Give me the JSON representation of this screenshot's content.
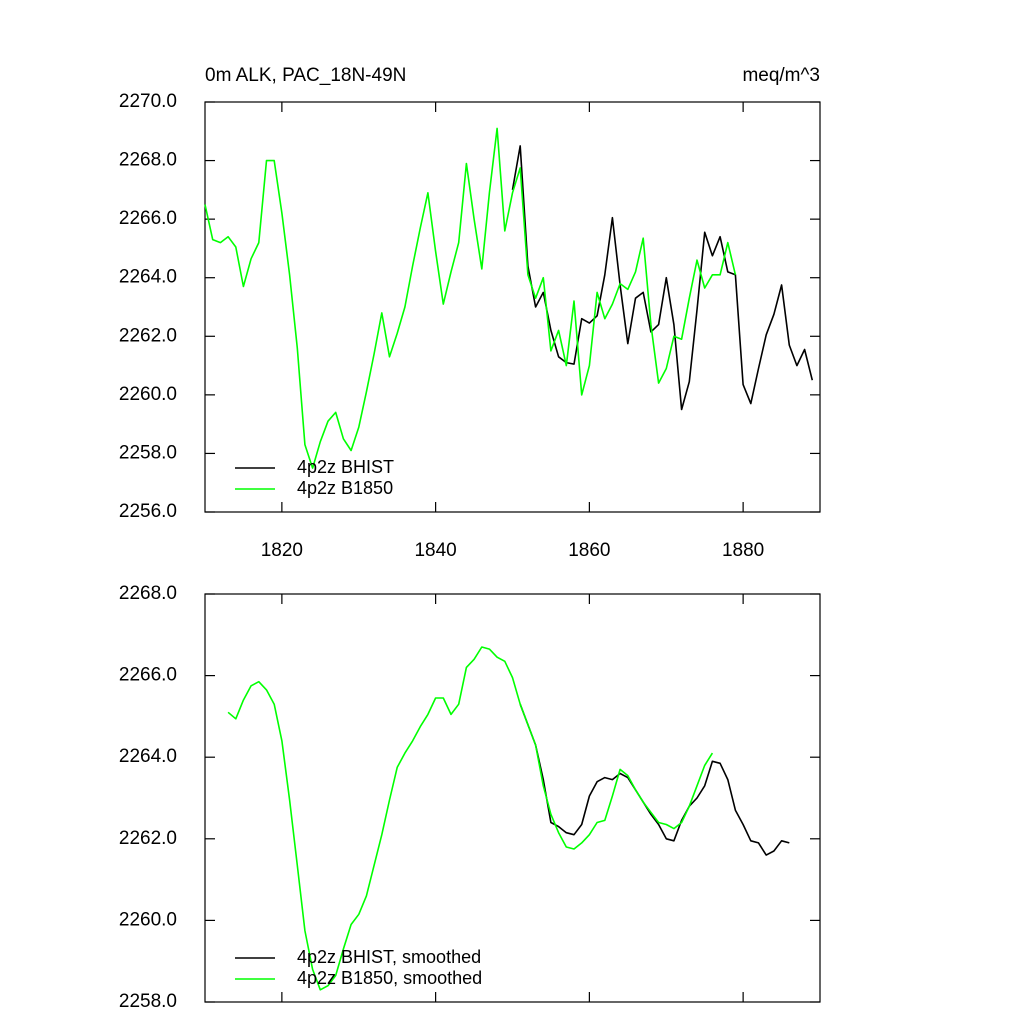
{
  "chart_data": [
    {
      "type": "line",
      "title": "0m ALK, PAC_18N-49N",
      "units": "meq/m^3",
      "xlim": [
        1810,
        1890
      ],
      "ylim": [
        2256,
        2270
      ],
      "xticks": [
        1820,
        1840,
        1860,
        1880
      ],
      "xtick_labels": true,
      "yticks": [
        {
          "value": 2256,
          "label": "2256.0"
        },
        {
          "value": 2258,
          "label": "2258.0"
        },
        {
          "value": 2260,
          "label": "2260.0"
        },
        {
          "value": 2262,
          "label": "2262.0"
        },
        {
          "value": 2264,
          "label": "2264.0"
        },
        {
          "value": 2266,
          "label": "2266.0"
        },
        {
          "value": 2268,
          "label": "2268.0"
        },
        {
          "value": 2270,
          "label": "2270.0"
        }
      ],
      "legend": "lower left",
      "series": [
        {
          "name": "4p2z BHIST",
          "color": "#000000",
          "x": [
            1850,
            1851,
            1852,
            1853,
            1854,
            1855,
            1856,
            1857,
            1858,
            1859,
            1860,
            1861,
            1862,
            1863,
            1864,
            1865,
            1866,
            1867,
            1868,
            1869,
            1870,
            1871,
            1872,
            1873,
            1874,
            1875,
            1876,
            1877,
            1878,
            1879,
            1880,
            1881,
            1882,
            1883,
            1884,
            1885,
            1886,
            1887,
            1888,
            1889
          ],
          "values": [
            2267.0,
            2268.5,
            2264.4,
            2263.0,
            2263.5,
            2262.2,
            2261.3,
            2261.1,
            2261.05,
            2262.6,
            2262.45,
            2262.7,
            2264.1,
            2266.05,
            2263.75,
            2261.75,
            2263.3,
            2263.5,
            2262.15,
            2262.4,
            2264.0,
            2262.4,
            2259.5,
            2260.45,
            2262.9,
            2265.55,
            2264.75,
            2265.4,
            2264.2,
            2264.1,
            2260.35,
            2259.7,
            2260.9,
            2262.05,
            2262.75,
            2263.75,
            2261.7,
            2261.0,
            2261.55,
            2260.5
          ]
        },
        {
          "name": "4p2z B1850",
          "color": "#00ff00",
          "x": [
            1810,
            1811,
            1812,
            1813,
            1814,
            1815,
            1816,
            1817,
            1818,
            1819,
            1820,
            1821,
            1822,
            1823,
            1824,
            1825,
            1826,
            1827,
            1828,
            1829,
            1830,
            1831,
            1832,
            1833,
            1834,
            1835,
            1836,
            1837,
            1838,
            1839,
            1840,
            1841,
            1842,
            1843,
            1844,
            1845,
            1846,
            1847,
            1848,
            1849,
            1850,
            1851,
            1852,
            1853,
            1854,
            1855,
            1856,
            1857,
            1858,
            1859,
            1860,
            1861,
            1862,
            1863,
            1864,
            1865,
            1866,
            1867,
            1868,
            1869,
            1870,
            1871,
            1872,
            1873,
            1874,
            1875,
            1876,
            1877,
            1878,
            1879
          ],
          "values": [
            2266.5,
            2265.3,
            2265.2,
            2265.4,
            2265.05,
            2263.7,
            2264.65,
            2265.2,
            2268.0,
            2268.0,
            2266.2,
            2264.1,
            2261.6,
            2258.3,
            2257.5,
            2258.4,
            2259.1,
            2259.4,
            2258.5,
            2258.1,
            2258.9,
            2260.1,
            2261.4,
            2262.8,
            2261.3,
            2262.1,
            2263.0,
            2264.4,
            2265.7,
            2266.9,
            2264.9,
            2263.1,
            2264.2,
            2265.2,
            2267.9,
            2266.0,
            2264.3,
            2266.9,
            2269.1,
            2265.6,
            2266.9,
            2267.75,
            2264.1,
            2263.3,
            2264.0,
            2261.5,
            2262.2,
            2261.0,
            2263.2,
            2260.0,
            2261.0,
            2263.5,
            2262.6,
            2263.1,
            2263.8,
            2263.6,
            2264.2,
            2265.35,
            2262.4,
            2260.4,
            2260.9,
            2262.0,
            2261.9,
            2263.3,
            2264.6,
            2263.65,
            2264.1,
            2264.1,
            2265.2,
            2264.1
          ]
        }
      ]
    },
    {
      "type": "line",
      "xlim": [
        1810,
        1890
      ],
      "ylim": [
        2258,
        2268
      ],
      "xticks": [
        1820,
        1840,
        1860,
        1880
      ],
      "xtick_labels": false,
      "yticks": [
        {
          "value": 2258,
          "label": "2258.0"
        },
        {
          "value": 2260,
          "label": "2260.0"
        },
        {
          "value": 2262,
          "label": "2262.0"
        },
        {
          "value": 2264,
          "label": "2264.0"
        },
        {
          "value": 2266,
          "label": "2266.0"
        },
        {
          "value": 2268,
          "label": "2268.0"
        }
      ],
      "legend": "lower left",
      "series": [
        {
          "name": "4p2z BHIST, smoothed",
          "color": "#000000",
          "x": [
            1851,
            1852,
            1853,
            1854,
            1855,
            1856,
            1857,
            1858,
            1859,
            1860,
            1861,
            1862,
            1863,
            1864,
            1865,
            1866,
            1867,
            1868,
            1869,
            1870,
            1871,
            1872,
            1873,
            1874,
            1875,
            1876,
            1877,
            1878,
            1879,
            1880,
            1881,
            1882,
            1883,
            1884,
            1885,
            1886
          ],
          "values": [
            2265.3,
            2264.8,
            2264.3,
            2263.45,
            2262.4,
            2262.3,
            2262.15,
            2262.1,
            2262.35,
            2263.05,
            2263.4,
            2263.5,
            2263.45,
            2263.6,
            2263.5,
            2263.2,
            2262.9,
            2262.6,
            2262.35,
            2262.0,
            2261.95,
            2262.45,
            2262.8,
            2263.0,
            2263.3,
            2263.9,
            2263.85,
            2263.45,
            2262.7,
            2262.35,
            2261.95,
            2261.9,
            2261.6,
            2261.7,
            2261.95,
            2261.9
          ]
        },
        {
          "name": "4p2z B1850, smoothed",
          "color": "#00ff00",
          "x": [
            1813,
            1814,
            1815,
            1816,
            1817,
            1818,
            1819,
            1820,
            1821,
            1822,
            1823,
            1824,
            1825,
            1826,
            1827,
            1828,
            1829,
            1830,
            1831,
            1832,
            1833,
            1834,
            1835,
            1836,
            1837,
            1838,
            1839,
            1840,
            1841,
            1842,
            1843,
            1844,
            1845,
            1846,
            1847,
            1848,
            1849,
            1850,
            1851,
            1852,
            1853,
            1854,
            1855,
            1856,
            1857,
            1858,
            1859,
            1860,
            1861,
            1862,
            1863,
            1864,
            1865,
            1866,
            1867,
            1868,
            1869,
            1870,
            1871,
            1872,
            1873,
            1874,
            1875,
            1876
          ],
          "values": [
            2265.1,
            2264.94,
            2265.4,
            2265.75,
            2265.85,
            2265.65,
            2265.3,
            2264.4,
            2262.95,
            2261.35,
            2259.75,
            2258.8,
            2258.3,
            2258.4,
            2258.65,
            2259.3,
            2259.9,
            2260.15,
            2260.6,
            2261.35,
            2262.1,
            2262.95,
            2263.75,
            2264.1,
            2264.4,
            2264.75,
            2265.05,
            2265.45,
            2265.45,
            2265.05,
            2265.3,
            2266.2,
            2266.4,
            2266.7,
            2266.65,
            2266.45,
            2266.35,
            2265.95,
            2265.3,
            2264.8,
            2264.3,
            2263.3,
            2262.6,
            2262.15,
            2261.8,
            2261.75,
            2261.9,
            2262.1,
            2262.4,
            2262.45,
            2263.05,
            2263.7,
            2263.55,
            2263.2,
            2262.9,
            2262.65,
            2262.4,
            2262.35,
            2262.25,
            2262.4,
            2262.8,
            2263.3,
            2263.8,
            2264.1
          ]
        }
      ]
    }
  ]
}
